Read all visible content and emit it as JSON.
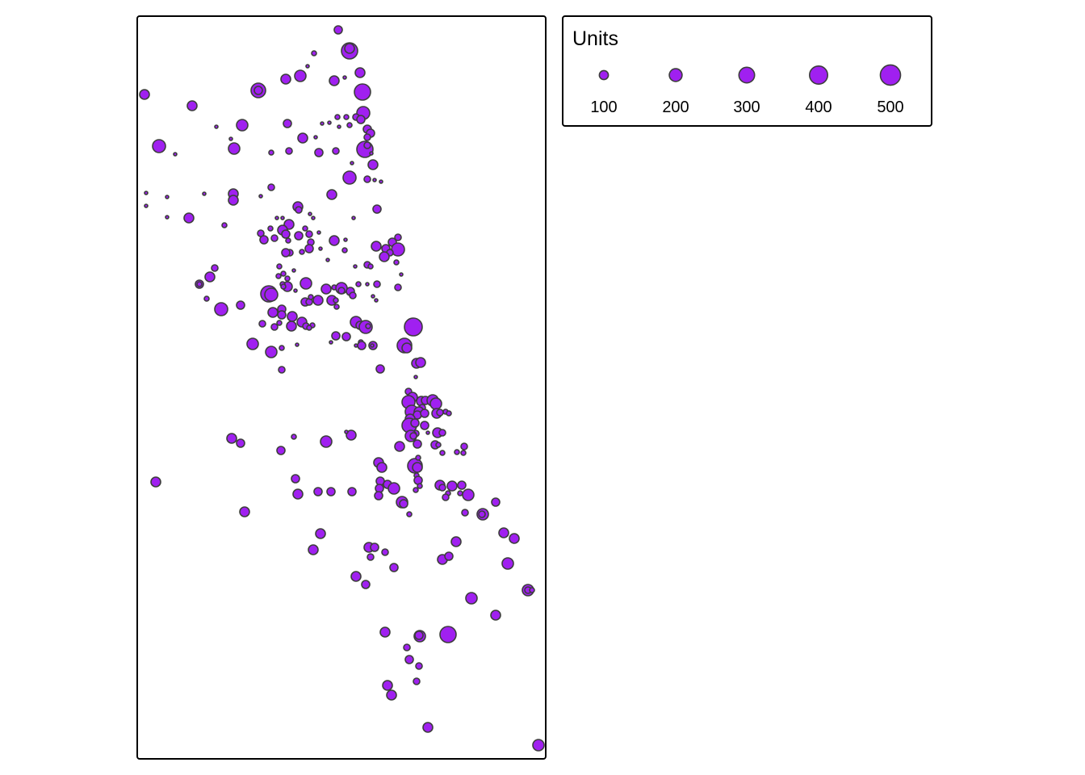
{
  "legend": {
    "title": "Units",
    "entries": [
      {
        "value": 100,
        "label": "100"
      },
      {
        "value": 200,
        "label": "200"
      },
      {
        "value": 300,
        "label": "300"
      },
      {
        "value": 400,
        "label": "400"
      },
      {
        "value": 500,
        "label": "500"
      }
    ]
  },
  "colors": {
    "fill": "#a020f0",
    "stroke": "#3d3d3d",
    "frame": "#000000",
    "background": "#ffffff"
  }
}
